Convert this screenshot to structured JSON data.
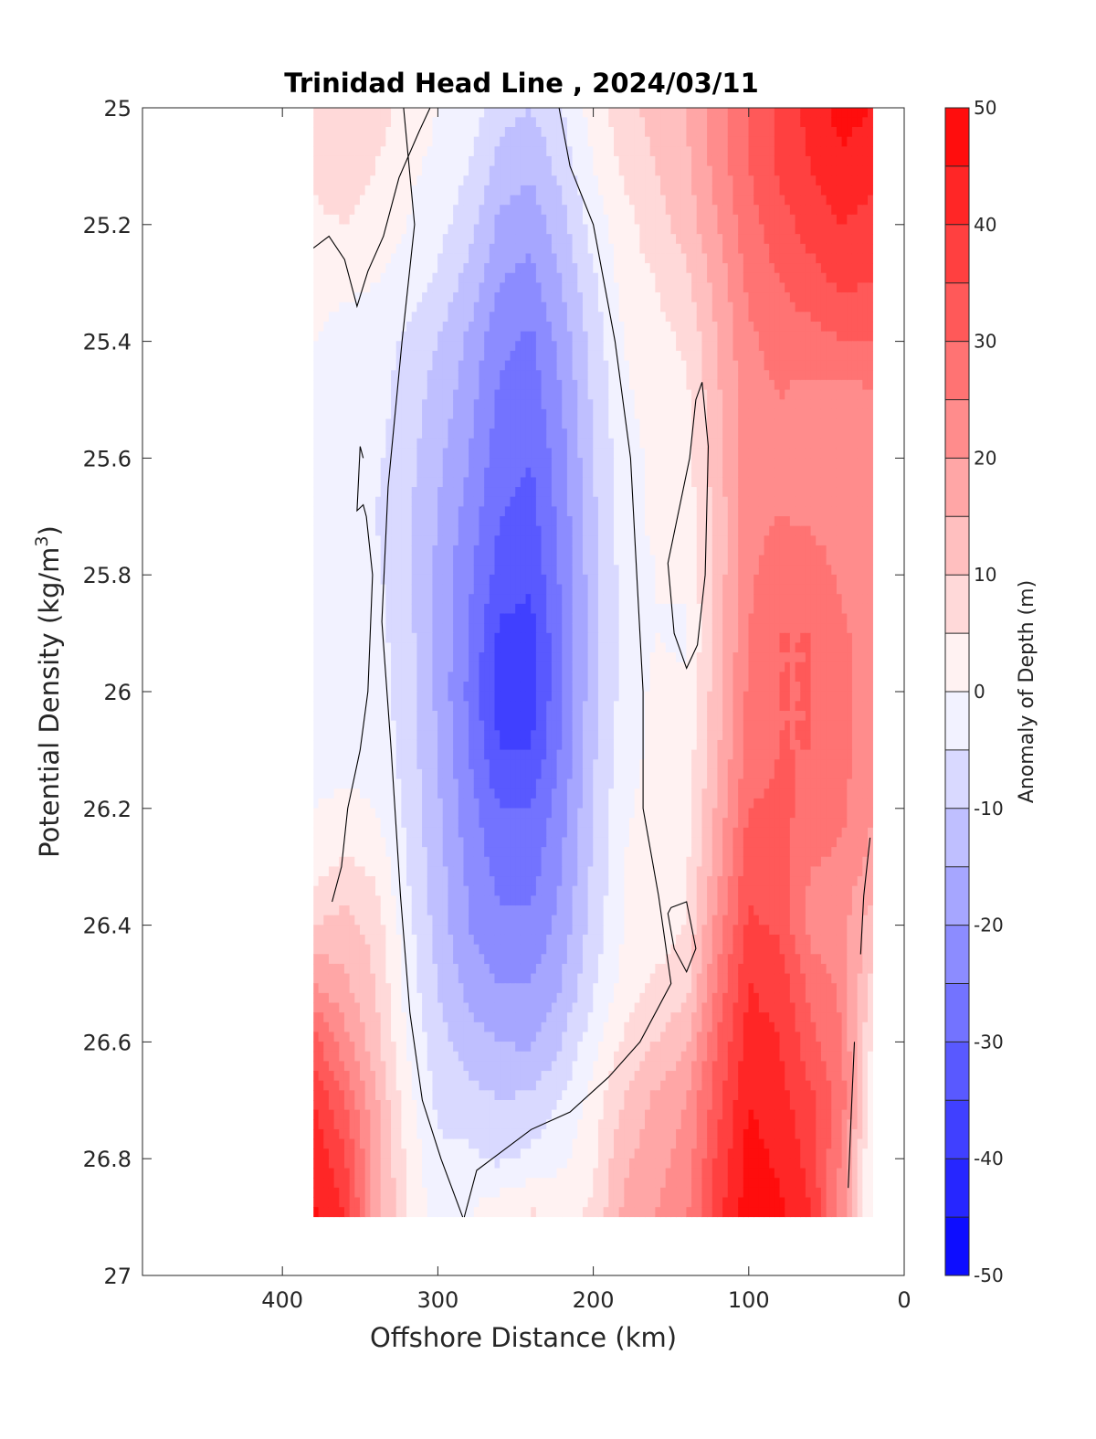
{
  "chart_data": {
    "type": "heatmap",
    "title": "Trinidad Head Line , 2024/03/11",
    "xlabel": "Offshore Distance (km)",
    "ylabel_main": "Potential Density (kg/m",
    "ylabel_sup": "3",
    "ylabel_close": ")",
    "colorbar_label": "Anomaly of Depth (m)",
    "xlim": [
      490,
      0
    ],
    "ylim": [
      25,
      27
    ],
    "x_reversed": true,
    "y_reversed": true,
    "x_ticks": [
      {
        "value": 400,
        "label": "400"
      },
      {
        "value": 300,
        "label": "300"
      },
      {
        "value": 200,
        "label": "200"
      },
      {
        "value": 100,
        "label": "100"
      },
      {
        "value": 0,
        "label": "0"
      }
    ],
    "y_ticks": [
      {
        "value": 25.0,
        "label": "25"
      },
      {
        "value": 25.2,
        "label": "25.2"
      },
      {
        "value": 25.4,
        "label": "25.4"
      },
      {
        "value": 25.6,
        "label": "25.6"
      },
      {
        "value": 25.8,
        "label": "25.8"
      },
      {
        "value": 26.0,
        "label": "26"
      },
      {
        "value": 26.2,
        "label": "26.2"
      },
      {
        "value": 26.4,
        "label": "26.4"
      },
      {
        "value": 26.6,
        "label": "26.6"
      },
      {
        "value": 26.8,
        "label": "26.8"
      },
      {
        "value": 27.0,
        "label": "27"
      }
    ],
    "colorbar_range": [
      -50,
      50
    ],
    "colorbar_step": 5,
    "colorbar_ticks": [
      {
        "value": 50,
        "label": "50"
      },
      {
        "value": 40,
        "label": "40"
      },
      {
        "value": 30,
        "label": "30"
      },
      {
        "value": 20,
        "label": "20"
      },
      {
        "value": 10,
        "label": "10"
      },
      {
        "value": 0,
        "label": "0"
      },
      {
        "value": -10,
        "label": "-10"
      },
      {
        "value": -20,
        "label": "-20"
      },
      {
        "value": -30,
        "label": "-30"
      },
      {
        "value": -40,
        "label": "-40"
      },
      {
        "value": -50,
        "label": "-50"
      }
    ],
    "colormap": {
      "negative": "#0000ff",
      "zero": "#ffffff",
      "positive": "#ff0000"
    },
    "data_x_extent": [
      380,
      20
    ],
    "data_y_extent": [
      25.0,
      26.9
    ],
    "grid_x": [
      380,
      360,
      340,
      320,
      300,
      280,
      260,
      240,
      220,
      200,
      180,
      160,
      140,
      120,
      100,
      80,
      60,
      40,
      20
    ],
    "grid_y": [
      25.0,
      25.1,
      25.2,
      25.3,
      25.4,
      25.5,
      25.6,
      25.7,
      25.8,
      25.9,
      26.0,
      26.1,
      26.2,
      26.3,
      26.4,
      26.5,
      26.6,
      26.7,
      26.8,
      26.9
    ],
    "anomaly_grid": [
      [
        8,
        10,
        8,
        3,
        0,
        -2,
        -8,
        -10,
        -5,
        2,
        8,
        12,
        15,
        22,
        30,
        36,
        42,
        47,
        45
      ],
      [
        6,
        8,
        5,
        1,
        -1,
        -5,
        -12,
        -14,
        -8,
        0,
        6,
        10,
        14,
        22,
        30,
        36,
        40,
        44,
        42
      ],
      [
        4,
        5,
        3,
        0,
        -3,
        -8,
        -16,
        -18,
        -12,
        -3,
        3,
        8,
        12,
        20,
        28,
        33,
        37,
        40,
        38
      ],
      [
        2,
        1,
        0,
        -2,
        -6,
        -12,
        -20,
        -22,
        -15,
        -6,
        2,
        5,
        9,
        17,
        26,
        30,
        33,
        36,
        35
      ],
      [
        0,
        -2,
        -3,
        -6,
        -10,
        -16,
        -24,
        -26,
        -18,
        -8,
        0,
        3,
        6,
        15,
        24,
        27,
        28,
        30,
        30
      ],
      [
        -2,
        -3,
        -3,
        -7,
        -12,
        -18,
        -26,
        -28,
        -20,
        -9,
        -1,
        2,
        4,
        14,
        23,
        25,
        23,
        22,
        24
      ],
      [
        -3,
        -4,
        -4,
        -8,
        -14,
        -20,
        -28,
        -30,
        -22,
        -10,
        -2,
        1,
        3,
        13,
        23,
        24,
        22,
        20,
        22
      ],
      [
        -3,
        -5,
        -5,
        -9,
        -15,
        -22,
        -30,
        -32,
        -23,
        -11,
        -2,
        1,
        2,
        12,
        23,
        25,
        24,
        22,
        22
      ],
      [
        -3,
        -5,
        -4,
        -9,
        -16,
        -24,
        -32,
        -34,
        -24,
        -12,
        -3,
        0,
        1,
        12,
        24,
        28,
        28,
        24,
        22
      ],
      [
        -3,
        -4,
        -3,
        -8,
        -16,
        -25,
        -36,
        -37,
        -25,
        -12,
        -3,
        0,
        -1,
        12,
        25,
        30,
        30,
        26,
        22
      ],
      [
        -3,
        -4,
        -2,
        -8,
        -16,
        -26,
        -38,
        -38,
        -25,
        -12,
        -3,
        1,
        1,
        13,
        26,
        30,
        30,
        27,
        22
      ],
      [
        -2,
        -2,
        -1,
        -7,
        -15,
        -25,
        -35,
        -35,
        -24,
        -11,
        -2,
        1,
        2,
        14,
        27,
        30,
        30,
        27,
        21
      ],
      [
        0,
        1,
        0,
        -6,
        -14,
        -23,
        -30,
        -30,
        -22,
        -10,
        -1,
        2,
        3,
        16,
        30,
        31,
        29,
        26,
        20
      ],
      [
        3,
        6,
        4,
        -5,
        -13,
        -21,
        -27,
        -27,
        -20,
        -9,
        0,
        3,
        4,
        18,
        33,
        32,
        25,
        24,
        18
      ],
      [
        10,
        12,
        8,
        -3,
        -12,
        -20,
        -24,
        -24,
        -18,
        -8,
        0,
        2,
        5,
        22,
        36,
        34,
        23,
        22,
        12
      ],
      [
        20,
        16,
        10,
        -2,
        -10,
        -17,
        -20,
        -20,
        -15,
        -6,
        2,
        6,
        8,
        26,
        40,
        38,
        28,
        24,
        8
      ],
      [
        32,
        22,
        12,
        0,
        -8,
        -13,
        -15,
        -16,
        -10,
        -2,
        6,
        10,
        14,
        30,
        42,
        40,
        32,
        25,
        4
      ],
      [
        40,
        30,
        16,
        2,
        -6,
        -8,
        -10,
        -9,
        -5,
        2,
        10,
        16,
        20,
        33,
        45,
        42,
        36,
        28,
        0
      ],
      [
        44,
        36,
        18,
        4,
        -4,
        -4,
        -6,
        -4,
        -1,
        4,
        14,
        18,
        22,
        36,
        47,
        44,
        38,
        24,
        -2
      ],
      [
        46,
        40,
        18,
        5,
        -2,
        0,
        4,
        6,
        4,
        6,
        16,
        20,
        24,
        38,
        48,
        46,
        40,
        22,
        -2
      ]
    ],
    "zero_contours": [
      [
        [
          380,
          25.24
        ],
        [
          370,
          25.22
        ],
        [
          360,
          25.26
        ],
        [
          352,
          25.34
        ],
        [
          345,
          25.28
        ],
        [
          335,
          25.22
        ],
        [
          325,
          25.12
        ],
        [
          312,
          25.04
        ],
        [
          305,
          25.0
        ]
      ],
      [
        [
          348,
          25.6
        ],
        [
          350,
          25.58
        ],
        [
          352,
          25.69
        ],
        [
          348,
          25.68
        ],
        [
          346,
          25.7
        ],
        [
          342,
          25.8
        ],
        [
          345,
          26.0
        ],
        [
          350,
          26.1
        ],
        [
          358,
          26.2
        ],
        [
          362,
          26.3
        ],
        [
          368,
          26.36
        ]
      ],
      [
        [
          322,
          25.0
        ],
        [
          315,
          25.2
        ],
        [
          323,
          25.4
        ],
        [
          332,
          25.65
        ],
        [
          336,
          25.88
        ],
        [
          330,
          26.1
        ],
        [
          324,
          26.35
        ],
        [
          318,
          26.55
        ],
        [
          310,
          26.7
        ],
        [
          298,
          26.8
        ],
        [
          284,
          26.9
        ]
      ],
      [
        [
          222,
          25.0
        ],
        [
          215,
          25.1
        ],
        [
          200,
          25.2
        ],
        [
          186,
          25.4
        ],
        [
          176,
          25.6
        ],
        [
          172,
          25.8
        ],
        [
          168,
          26.0
        ],
        [
          168,
          26.2
        ],
        [
          158,
          26.35
        ],
        [
          150,
          26.5
        ],
        [
          170,
          26.6
        ],
        [
          190,
          26.66
        ],
        [
          215,
          26.72
        ],
        [
          240,
          26.75
        ],
        [
          260,
          26.79
        ],
        [
          275,
          26.82
        ],
        [
          283,
          26.9
        ]
      ],
      [
        [
          130,
          25.47
        ],
        [
          126,
          25.58
        ],
        [
          128,
          25.8
        ],
        [
          133,
          25.92
        ],
        [
          140,
          25.96
        ],
        [
          148,
          25.9
        ],
        [
          152,
          25.78
        ],
        [
          138,
          25.6
        ],
        [
          134,
          25.5
        ],
        [
          130,
          25.47
        ]
      ],
      [
        [
          150,
          26.37
        ],
        [
          140,
          26.36
        ],
        [
          134,
          26.44
        ],
        [
          140,
          26.48
        ],
        [
          148,
          26.44
        ],
        [
          152,
          26.38
        ],
        [
          150,
          26.37
        ]
      ],
      [
        [
          22,
          26.25
        ],
        [
          26,
          26.35
        ],
        [
          28,
          26.45
        ]
      ],
      [
        [
          32,
          26.6
        ],
        [
          34,
          26.72
        ],
        [
          36,
          26.85
        ]
      ]
    ]
  }
}
